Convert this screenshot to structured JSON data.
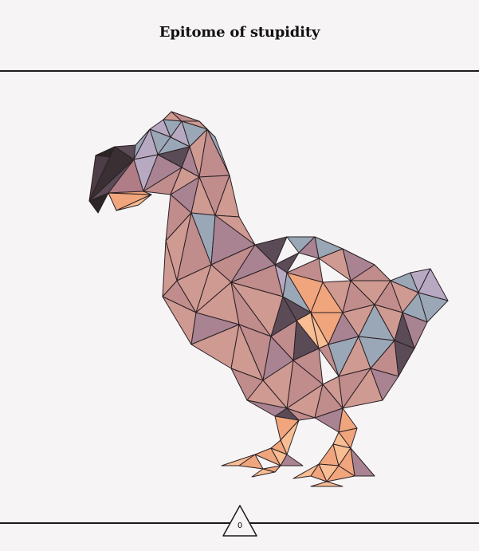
{
  "header": {
    "title": "Epitome of stupidity"
  },
  "art": {
    "subject_icon": "dodo-lowpoly-icon",
    "palette": {
      "outline": "#2a2024",
      "mauve": "#c08c8c",
      "rose": "#cf9a91",
      "dusk": "#a98392",
      "slate": "#9aa7b6",
      "lilac": "#b8a9c3",
      "peach": "#f0a57d",
      "apricot": "#f8bd93",
      "plum": "#5b4b57",
      "charcoal": "#2c2526",
      "background": "#f6f4f5"
    }
  },
  "counter": {
    "value": "0",
    "icon": "triangle-icon"
  }
}
